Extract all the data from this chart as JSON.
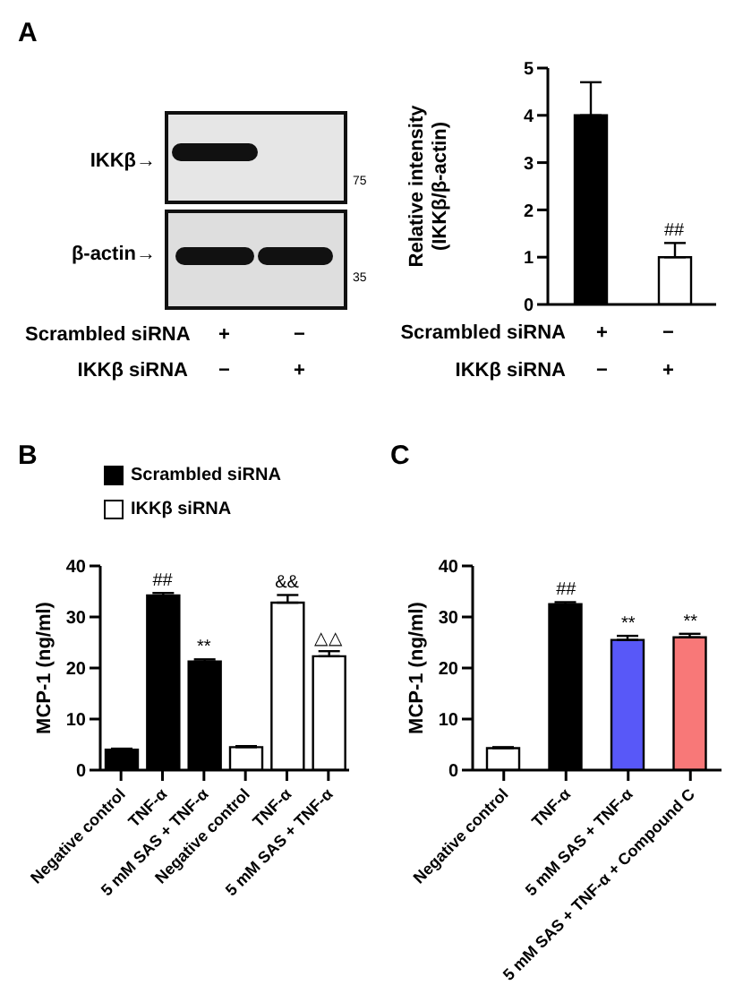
{
  "chart_data": [
    {
      "type": "bar",
      "ylabel": "Relative intensity\n(IKKβ/β-actin)",
      "categories": [
        null,
        null
      ],
      "values": [
        4.0,
        1.0
      ],
      "errors": [
        0.7,
        0.3
      ],
      "colors": [
        "#000000",
        "#ffffff"
      ],
      "ylim": [
        0,
        5
      ],
      "yticks": [
        0,
        1,
        2,
        3,
        4,
        5
      ],
      "annotations": [
        "A",
        "IKKβ→",
        "β-actin→",
        "75",
        "35",
        "Scrambled siRNA",
        "+",
        "−",
        "IKKβ siRNA",
        "−",
        "+",
        "Scrambled siRNA",
        "+",
        "−",
        "IKKβ siRNA",
        "−",
        "+",
        "##"
      ]
    },
    {
      "type": "bar",
      "title": "B",
      "ylabel": "MCP-1 (ng/ml)",
      "categories": [
        "Negative control",
        "TNF-α",
        "5 mM SAS + TNF-α",
        "Negative control",
        "TNF-α",
        "5 mM SAS + TNF-α"
      ],
      "series": [
        {
          "name": "Scrambled siRNA",
          "color": "#000000",
          "values": [
            4.0,
            34.2,
            21.3,
            null,
            null,
            null
          ],
          "errors": [
            0.2,
            0.5,
            0.4,
            null,
            null,
            null
          ]
        },
        {
          "name": "IKKβ siRNA",
          "color": "#ffffff",
          "values": [
            null,
            null,
            null,
            4.5,
            32.8,
            22.3
          ],
          "errors": [
            null,
            null,
            null,
            0.2,
            1.5,
            1.0
          ]
        }
      ],
      "legend": "top left",
      "ylim": [
        0,
        40
      ],
      "yticks": [
        0,
        10,
        20,
        30,
        40
      ],
      "annotations": [
        "##",
        "**",
        "&&",
        "△△"
      ]
    },
    {
      "type": "bar",
      "title": "C",
      "ylabel": "MCP-1 (ng/ml)",
      "categories": [
        "Negative control",
        "TNF-α",
        "5 mM SAS + TNF-α",
        "5 mM SAS + TNF-α + Compound C"
      ],
      "values": [
        4.3,
        32.5,
        25.5,
        26.0
      ],
      "errors": [
        0.2,
        0.4,
        0.8,
        0.7
      ],
      "colors": [
        "#ffffff",
        "#000000",
        "#5858f8",
        "#f87878"
      ],
      "ylim": [
        0,
        40
      ],
      "yticks": [
        0,
        10,
        20,
        30,
        40
      ],
      "annotations": [
        "##",
        "**",
        "**"
      ]
    }
  ]
}
